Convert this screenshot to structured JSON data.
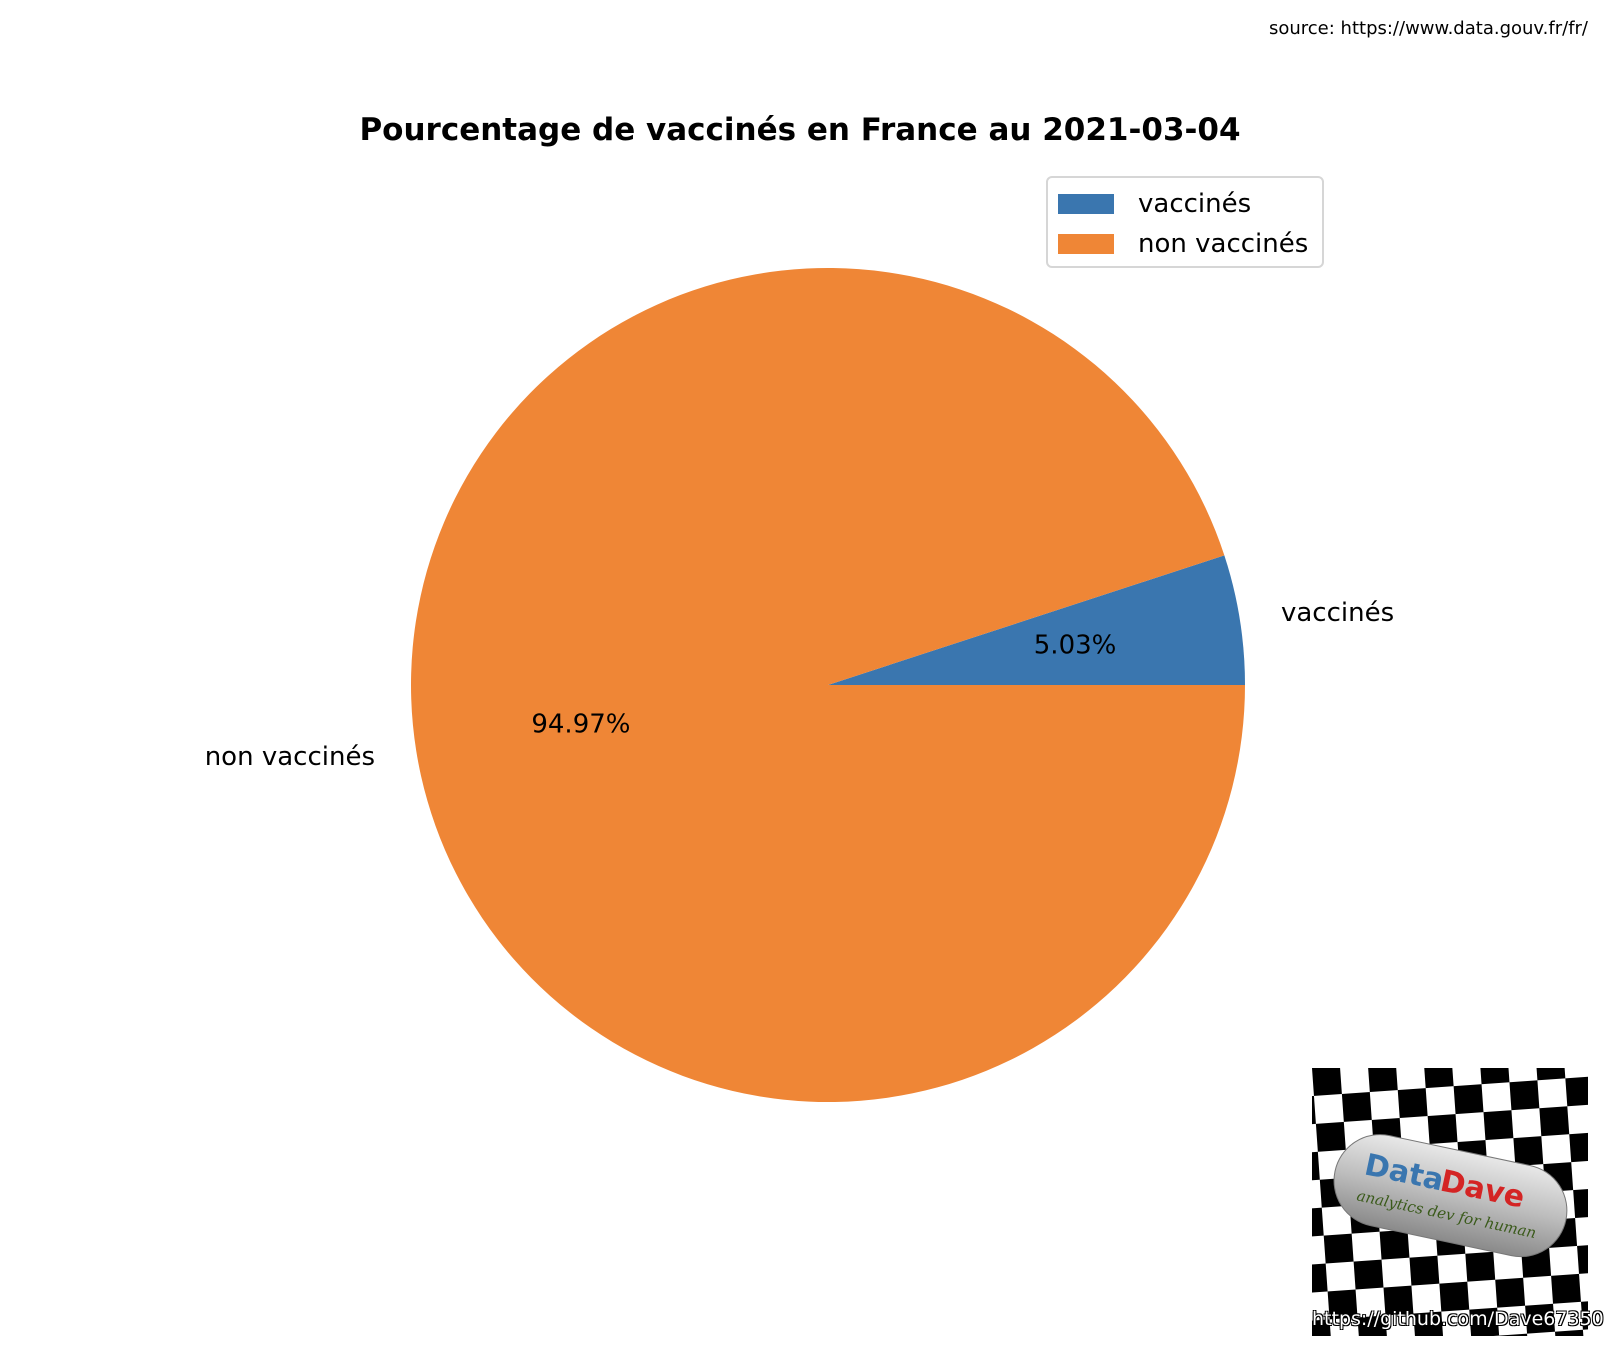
{
  "source": "source: https://www.data.gouv.fr/fr/",
  "chart_data": {
    "type": "pie",
    "title": "Pourcentage de vaccinés en France au 2021-03-04",
    "slices": [
      {
        "label": "vaccinés",
        "value": 5.03,
        "pct_label": "5.03%",
        "color": "#3a76af"
      },
      {
        "label": "non vaccinés",
        "value": 94.97,
        "pct_label": "94.97%",
        "color": "#ef8636"
      }
    ],
    "legend": {
      "placement": "upper right",
      "entries": [
        "vaccinés",
        "non vaccinés"
      ]
    }
  },
  "logo": {
    "text_data": "Data",
    "text_dave": "Dave",
    "tagline": "analytics dev for human",
    "url": "https://github.com/Dave67350",
    "colors": {
      "data": "#3a76af",
      "dave": "#d42424"
    }
  }
}
